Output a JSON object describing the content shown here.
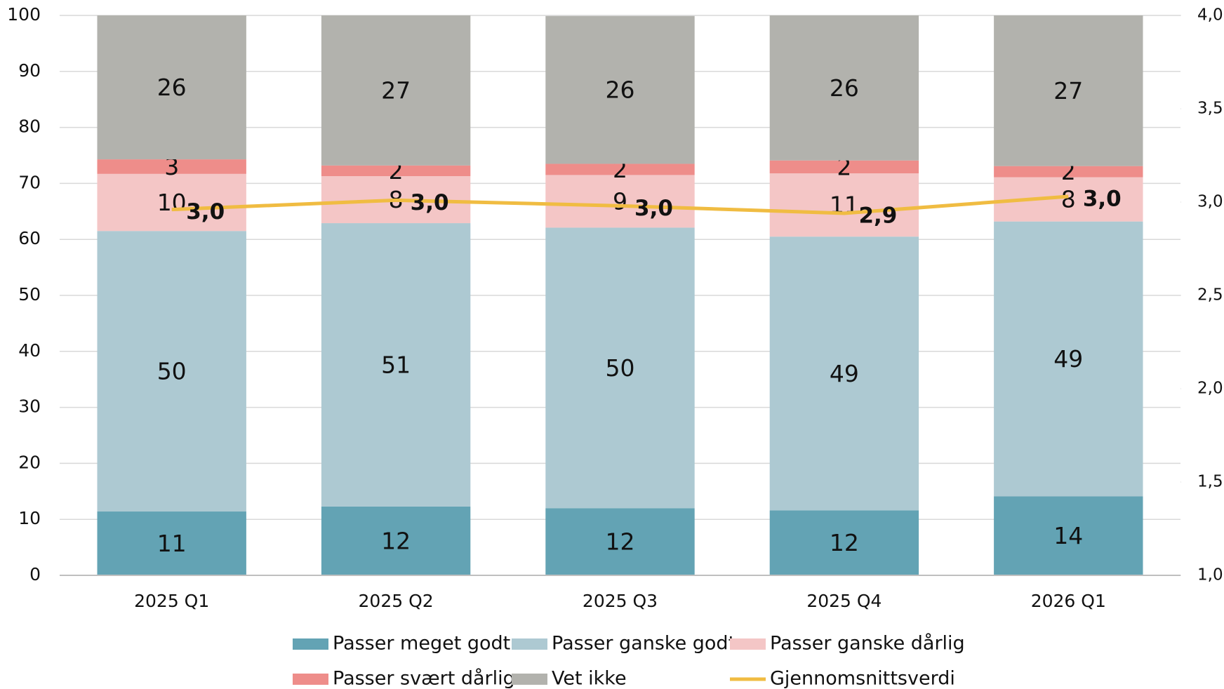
{
  "chart_data": {
    "type": "bar",
    "stacked": true,
    "categories": [
      "2025 Q1",
      "2025 Q2",
      "2025 Q3",
      "2025 Q4",
      "2026 Q1"
    ],
    "series": [
      {
        "name": "Passer meget godt",
        "color": "#63a3b4",
        "values": [
          11.4,
          12.3,
          12.0,
          11.6,
          14.1
        ],
        "value_labels": [
          "11",
          "12",
          "12",
          "12",
          "14"
        ]
      },
      {
        "name": "Passer ganske godt",
        "color": "#adc9d2",
        "values": [
          50.1,
          50.6,
          50.1,
          48.9,
          49.1
        ],
        "value_labels": [
          "50",
          "51",
          "50",
          "49",
          "49"
        ]
      },
      {
        "name": "Passer ganske dårlig",
        "color": "#f4c6c6",
        "values": [
          10.2,
          8.4,
          9.4,
          11.3,
          7.9
        ],
        "value_labels": [
          "10",
          "8",
          "9",
          "11",
          "8"
        ]
      },
      {
        "name": "Passer svært dårlig",
        "color": "#ee8d8a",
        "values": [
          2.6,
          1.9,
          2.0,
          2.3,
          2.0
        ],
        "value_labels": [
          "3",
          "2",
          "2",
          "2",
          "2"
        ]
      },
      {
        "name": "Vet ikke",
        "color": "#b2b2ad",
        "values": [
          25.7,
          26.8,
          26.4,
          25.9,
          26.9
        ],
        "value_labels": [
          "26",
          "27",
          "26",
          "26",
          "27"
        ]
      },
      {
        "name": "Gjennomsnittsverdi",
        "color": "#f0bc42",
        "type": "line",
        "axis": "y2",
        "values": [
          2.96,
          3.01,
          2.98,
          2.94,
          3.03
        ],
        "value_labels": [
          "3,0",
          "3,0",
          "3,0",
          "2,9",
          "3,0"
        ]
      }
    ],
    "ylim": [
      0,
      100
    ],
    "yticks": [
      0,
      10,
      20,
      30,
      40,
      50,
      60,
      70,
      80,
      90,
      100
    ],
    "y2lim": [
      1.0,
      4.0
    ],
    "y2ticks": [
      {
        "value": 1.0,
        "label": "1,0"
      },
      {
        "value": 1.5,
        "label": "1,5"
      },
      {
        "value": 2.0,
        "label": "2,0"
      },
      {
        "value": 2.5,
        "label": "2,5"
      },
      {
        "value": 3.0,
        "label": "3,0"
      },
      {
        "value": 3.5,
        "label": "3,5"
      },
      {
        "value": 4.0,
        "label": "4,0"
      }
    ],
    "grid": true,
    "legend": "bottom"
  }
}
